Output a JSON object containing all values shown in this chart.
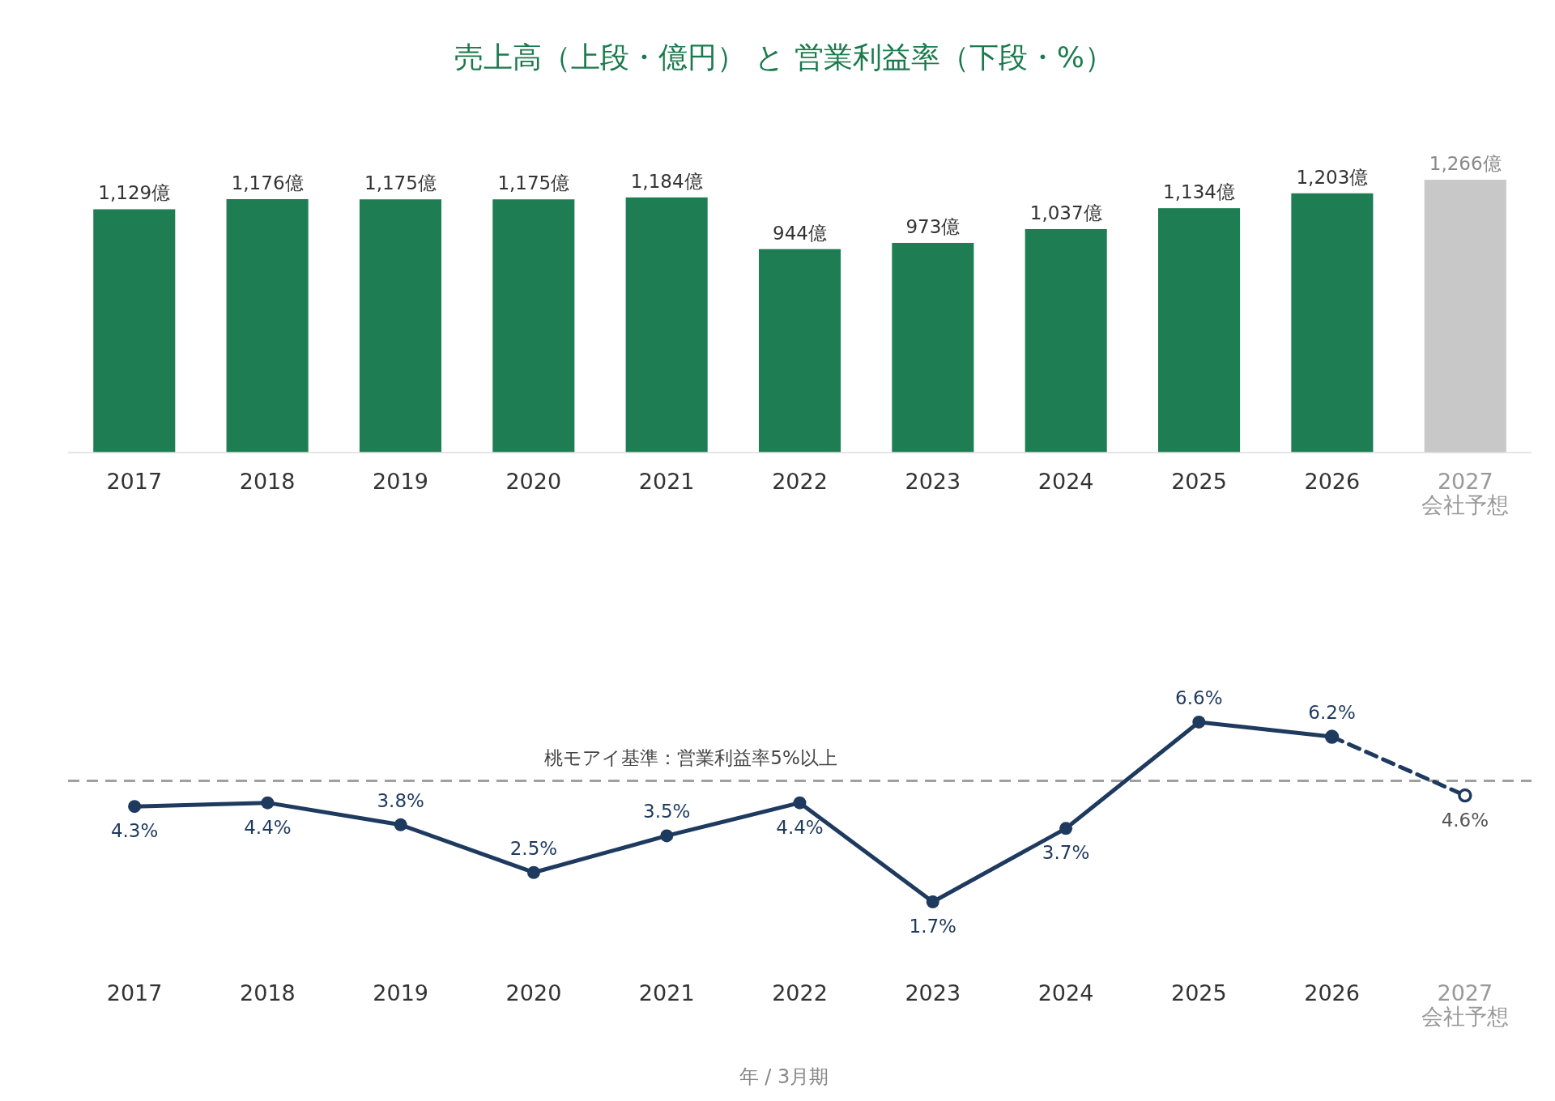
{
  "chart_data": [
    {
      "type": "bar",
      "title": "売上高（上段・億円） と 営業利益率（下段・%）",
      "categories": [
        "2017",
        "2018",
        "2019",
        "2020",
        "2021",
        "2022",
        "2023",
        "2024",
        "2025",
        "2026",
        "2027\n会社予想"
      ],
      "values": [
        1129,
        1176,
        1175,
        1175,
        1184,
        944,
        973,
        1037,
        1134,
        1203,
        1266
      ],
      "colors": [
        "#1e7d52",
        "#1e7d52",
        "#1e7d52",
        "#1e7d52",
        "#1e7d52",
        "#1e7d52",
        "#1e7d52",
        "#1e7d52",
        "#1e7d52",
        "#1e7d52",
        "#c8c8c8"
      ],
      "value_labels": [
        "1,129億",
        "1,176億",
        "1,175億",
        "1,175億",
        "1,184億",
        "944億",
        "973億",
        "1,037億",
        "1,134億",
        "1,203億",
        "1,266億"
      ]
    },
    {
      "type": "line",
      "xlabel": "年 / 3月期",
      "categories": [
        "2017",
        "2018",
        "2019",
        "2020",
        "2021",
        "2022",
        "2023",
        "2024",
        "2025",
        "2026",
        "2027\n会社予想"
      ],
      "series": [
        {
          "color": "#1f3a5f",
          "line_style": "dashed",
          "marker": "circle",
          "values": [
            null,
            null,
            null,
            null,
            null,
            null,
            null,
            null,
            null,
            6.2,
            4.6
          ],
          "value_labels": [
            null,
            null,
            null,
            null,
            null,
            null,
            null,
            null,
            null,
            null,
            "4.6%"
          ]
        },
        {
          "color": "#1f3a5f",
          "line_style": "solid",
          "marker": "circle",
          "values": [
            4.3,
            4.4,
            3.8,
            2.5,
            3.5,
            4.4,
            1.7,
            3.7,
            6.6,
            6.2,
            null
          ],
          "value_labels": [
            "4.3%",
            "4.4%",
            "3.8%",
            "2.5%",
            "3.5%",
            "4.4%",
            "1.7%",
            "3.7%",
            "6.6%",
            "6.2%",
            null
          ]
        }
      ],
      "ref_lines": [
        {
          "axis": "y",
          "value": 5,
          "label": "桃モアイ基準：営業利益率5%以上",
          "color": "#a0a0a0",
          "line_style": "dashed"
        }
      ]
    }
  ]
}
